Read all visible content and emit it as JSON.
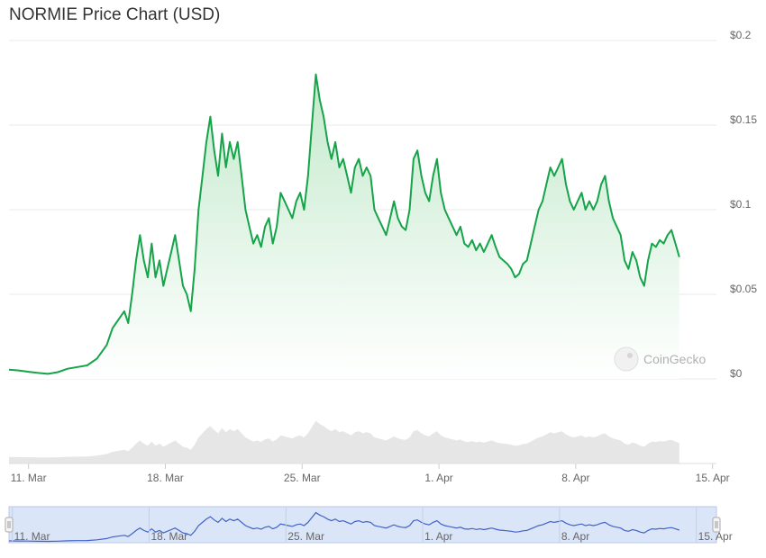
{
  "title": "NORMIE Price Chart (USD)",
  "watermark": "CoinGecko",
  "colors": {
    "line": "#16a34a",
    "area_top": "#bfe8c8",
    "volume": "#e6e6e6",
    "grid": "#e9e9e9",
    "navigator_fill": "#dbe5f8",
    "navigator_line": "#3f63c7"
  },
  "chart_data": {
    "type": "area",
    "title": "NORMIE Price Chart (USD)",
    "currency": "USD",
    "ylim": [
      0,
      0.2
    ],
    "y_ticks": [
      {
        "value": 0,
        "label": "$0"
      },
      {
        "value": 0.05,
        "label": "$0.05"
      },
      {
        "value": 0.1,
        "label": "$0.1"
      },
      {
        "value": 0.15,
        "label": "$0.15"
      },
      {
        "value": 0.2,
        "label": "$0.2"
      }
    ],
    "x_ticks": [
      {
        "day": 11,
        "label": "11. Mar"
      },
      {
        "day": 18,
        "label": "18. Mar"
      },
      {
        "day": 25,
        "label": "25. Mar"
      },
      {
        "day": 32,
        "label": "1. Apr"
      },
      {
        "day": 39,
        "label": "8. Apr"
      },
      {
        "day": 46,
        "label": "15. Apr"
      }
    ],
    "x_range_days": [
      10.0,
      46.2
    ],
    "grid": true,
    "series": [
      {
        "values_description": "approximate price samples (day-of-March index, USD)",
        "points": [
          [
            10.0,
            0.0055
          ],
          [
            10.5,
            0.005
          ],
          [
            11.0,
            0.0042
          ],
          [
            11.5,
            0.0035
          ],
          [
            12.0,
            0.003
          ],
          [
            12.5,
            0.004
          ],
          [
            13.0,
            0.006
          ],
          [
            13.5,
            0.007
          ],
          [
            14.0,
            0.008
          ],
          [
            14.5,
            0.012
          ],
          [
            15.0,
            0.02
          ],
          [
            15.3,
            0.03
          ],
          [
            15.6,
            0.035
          ],
          [
            15.9,
            0.04
          ],
          [
            16.1,
            0.033
          ],
          [
            16.3,
            0.05
          ],
          [
            16.5,
            0.07
          ],
          [
            16.7,
            0.085
          ],
          [
            16.9,
            0.07
          ],
          [
            17.1,
            0.06
          ],
          [
            17.3,
            0.08
          ],
          [
            17.5,
            0.06
          ],
          [
            17.7,
            0.07
          ],
          [
            17.9,
            0.055
          ],
          [
            18.1,
            0.065
          ],
          [
            18.3,
            0.075
          ],
          [
            18.5,
            0.085
          ],
          [
            18.7,
            0.07
          ],
          [
            18.9,
            0.055
          ],
          [
            19.1,
            0.05
          ],
          [
            19.3,
            0.04
          ],
          [
            19.5,
            0.065
          ],
          [
            19.7,
            0.1
          ],
          [
            19.9,
            0.12
          ],
          [
            20.1,
            0.14
          ],
          [
            20.3,
            0.155
          ],
          [
            20.5,
            0.135
          ],
          [
            20.7,
            0.12
          ],
          [
            20.9,
            0.145
          ],
          [
            21.1,
            0.125
          ],
          [
            21.3,
            0.14
          ],
          [
            21.5,
            0.13
          ],
          [
            21.7,
            0.14
          ],
          [
            21.9,
            0.12
          ],
          [
            22.1,
            0.1
          ],
          [
            22.3,
            0.09
          ],
          [
            22.5,
            0.08
          ],
          [
            22.7,
            0.085
          ],
          [
            22.9,
            0.078
          ],
          [
            23.1,
            0.09
          ],
          [
            23.3,
            0.095
          ],
          [
            23.5,
            0.08
          ],
          [
            23.7,
            0.09
          ],
          [
            23.9,
            0.11
          ],
          [
            24.1,
            0.105
          ],
          [
            24.3,
            0.1
          ],
          [
            24.5,
            0.095
          ],
          [
            24.7,
            0.105
          ],
          [
            24.9,
            0.11
          ],
          [
            25.1,
            0.1
          ],
          [
            25.3,
            0.12
          ],
          [
            25.5,
            0.15
          ],
          [
            25.7,
            0.18
          ],
          [
            25.9,
            0.165
          ],
          [
            26.1,
            0.155
          ],
          [
            26.3,
            0.14
          ],
          [
            26.5,
            0.13
          ],
          [
            26.7,
            0.14
          ],
          [
            26.9,
            0.125
          ],
          [
            27.1,
            0.13
          ],
          [
            27.3,
            0.12
          ],
          [
            27.5,
            0.11
          ],
          [
            27.7,
            0.125
          ],
          [
            27.9,
            0.13
          ],
          [
            28.1,
            0.12
          ],
          [
            28.3,
            0.125
          ],
          [
            28.5,
            0.12
          ],
          [
            28.7,
            0.1
          ],
          [
            28.9,
            0.095
          ],
          [
            29.1,
            0.09
          ],
          [
            29.3,
            0.085
          ],
          [
            29.5,
            0.095
          ],
          [
            29.7,
            0.105
          ],
          [
            29.9,
            0.095
          ],
          [
            30.1,
            0.09
          ],
          [
            30.3,
            0.088
          ],
          [
            30.5,
            0.1
          ],
          [
            30.7,
            0.13
          ],
          [
            30.9,
            0.135
          ],
          [
            31.1,
            0.12
          ],
          [
            31.3,
            0.11
          ],
          [
            31.5,
            0.105
          ],
          [
            31.7,
            0.12
          ],
          [
            31.9,
            0.13
          ],
          [
            32.1,
            0.11
          ],
          [
            32.3,
            0.1
          ],
          [
            32.5,
            0.095
          ],
          [
            32.7,
            0.09
          ],
          [
            32.9,
            0.085
          ],
          [
            33.1,
            0.09
          ],
          [
            33.3,
            0.08
          ],
          [
            33.5,
            0.078
          ],
          [
            33.7,
            0.082
          ],
          [
            33.9,
            0.076
          ],
          [
            34.1,
            0.08
          ],
          [
            34.3,
            0.075
          ],
          [
            34.5,
            0.08
          ],
          [
            34.7,
            0.085
          ],
          [
            34.9,
            0.078
          ],
          [
            35.1,
            0.072
          ],
          [
            35.3,
            0.07
          ],
          [
            35.5,
            0.068
          ],
          [
            35.7,
            0.065
          ],
          [
            35.9,
            0.06
          ],
          [
            36.1,
            0.062
          ],
          [
            36.3,
            0.068
          ],
          [
            36.5,
            0.07
          ],
          [
            36.7,
            0.08
          ],
          [
            36.9,
            0.09
          ],
          [
            37.1,
            0.1
          ],
          [
            37.3,
            0.105
          ],
          [
            37.5,
            0.115
          ],
          [
            37.7,
            0.125
          ],
          [
            37.9,
            0.12
          ],
          [
            38.1,
            0.125
          ],
          [
            38.3,
            0.13
          ],
          [
            38.5,
            0.115
          ],
          [
            38.7,
            0.105
          ],
          [
            38.9,
            0.1
          ],
          [
            39.1,
            0.105
          ],
          [
            39.3,
            0.11
          ],
          [
            39.5,
            0.1
          ],
          [
            39.7,
            0.105
          ],
          [
            39.9,
            0.1
          ],
          [
            40.1,
            0.105
          ],
          [
            40.3,
            0.115
          ],
          [
            40.5,
            0.12
          ],
          [
            40.7,
            0.105
          ],
          [
            40.9,
            0.095
          ],
          [
            41.1,
            0.09
          ],
          [
            41.3,
            0.085
          ],
          [
            41.5,
            0.07
          ],
          [
            41.7,
            0.065
          ],
          [
            41.9,
            0.075
          ],
          [
            42.1,
            0.07
          ],
          [
            42.3,
            0.06
          ],
          [
            42.5,
            0.055
          ],
          [
            42.7,
            0.07
          ],
          [
            42.9,
            0.08
          ],
          [
            43.1,
            0.078
          ],
          [
            43.3,
            0.082
          ],
          [
            43.5,
            0.08
          ],
          [
            43.7,
            0.085
          ],
          [
            43.9,
            0.088
          ],
          [
            44.1,
            0.08
          ],
          [
            44.3,
            0.072
          ]
        ]
      }
    ],
    "volume_description": "light grey volume area beneath price plot",
    "navigator": {
      "x_ticks": [
        "11. Mar",
        "18. Mar",
        "25. Mar",
        "1. Apr",
        "8. Apr",
        "15. Apr"
      ]
    }
  }
}
